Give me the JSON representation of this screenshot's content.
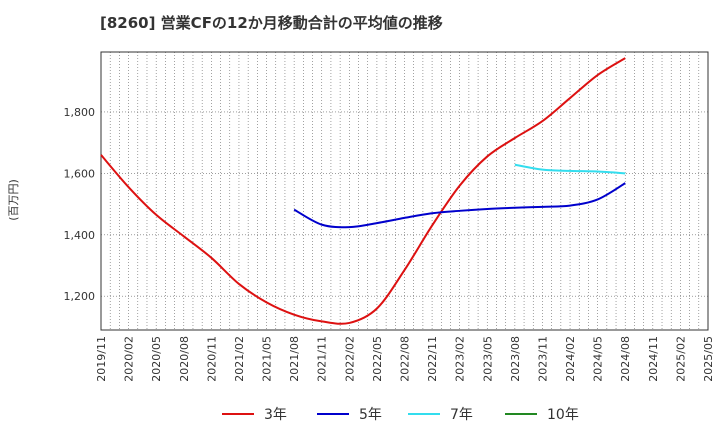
{
  "chart_data": {
    "type": "line",
    "title": "[8260]  営業CFの12か月移動合計の平均値の推移",
    "ylabel": "(百万円)",
    "xlabel": "",
    "ylim": [
      1090,
      1995
    ],
    "y_ticks": [
      1200,
      1400,
      1600,
      1800
    ],
    "y_tick_labels": [
      "1,200",
      "1,400",
      "1,600",
      "1,800"
    ],
    "x_tick_labels": [
      "2019/11",
      "2020/02",
      "2020/05",
      "2020/08",
      "2020/11",
      "2021/02",
      "2021/05",
      "2021/08",
      "2021/11",
      "2022/02",
      "2022/05",
      "2022/08",
      "2022/11",
      "2023/02",
      "2023/05",
      "2023/08",
      "2023/11",
      "2024/02",
      "2024/05",
      "2024/08",
      "2024/11",
      "2025/02",
      "2025/05"
    ],
    "grid": true,
    "legend_position": "bottom",
    "series": [
      {
        "name": "3年",
        "color": "#dd1111",
        "points": [
          [
            "2019/11",
            1660
          ],
          [
            "2020/02",
            1555
          ],
          [
            "2020/05",
            1465
          ],
          [
            "2020/08",
            1395
          ],
          [
            "2020/11",
            1325
          ],
          [
            "2021/02",
            1240
          ],
          [
            "2021/05",
            1180
          ],
          [
            "2021/08",
            1140
          ],
          [
            "2021/11",
            1118
          ],
          [
            "2022/02",
            1113
          ],
          [
            "2022/05",
            1160
          ],
          [
            "2022/08",
            1285
          ],
          [
            "2022/11",
            1430
          ],
          [
            "2023/02",
            1560
          ],
          [
            "2023/05",
            1655
          ],
          [
            "2023/08",
            1715
          ],
          [
            "2023/11",
            1770
          ],
          [
            "2024/02",
            1845
          ],
          [
            "2024/05",
            1920
          ],
          [
            "2024/08",
            1975
          ]
        ]
      },
      {
        "name": "5年",
        "color": "#0000cc",
        "points": [
          [
            "2021/08",
            1482
          ],
          [
            "2021/11",
            1433
          ],
          [
            "2022/02",
            1425
          ],
          [
            "2022/05",
            1438
          ],
          [
            "2022/08",
            1455
          ],
          [
            "2022/11",
            1470
          ],
          [
            "2023/02",
            1478
          ],
          [
            "2023/05",
            1484
          ],
          [
            "2023/08",
            1488
          ],
          [
            "2023/11",
            1491
          ],
          [
            "2024/02",
            1495
          ],
          [
            "2024/05",
            1515
          ],
          [
            "2024/08",
            1568
          ]
        ]
      },
      {
        "name": "7年",
        "color": "#33ddee",
        "points": [
          [
            "2023/08",
            1628
          ],
          [
            "2023/11",
            1612
          ],
          [
            "2024/02",
            1608
          ],
          [
            "2024/05",
            1606
          ],
          [
            "2024/08",
            1600
          ]
        ]
      },
      {
        "name": "10年",
        "color": "#228822",
        "points": []
      }
    ]
  }
}
